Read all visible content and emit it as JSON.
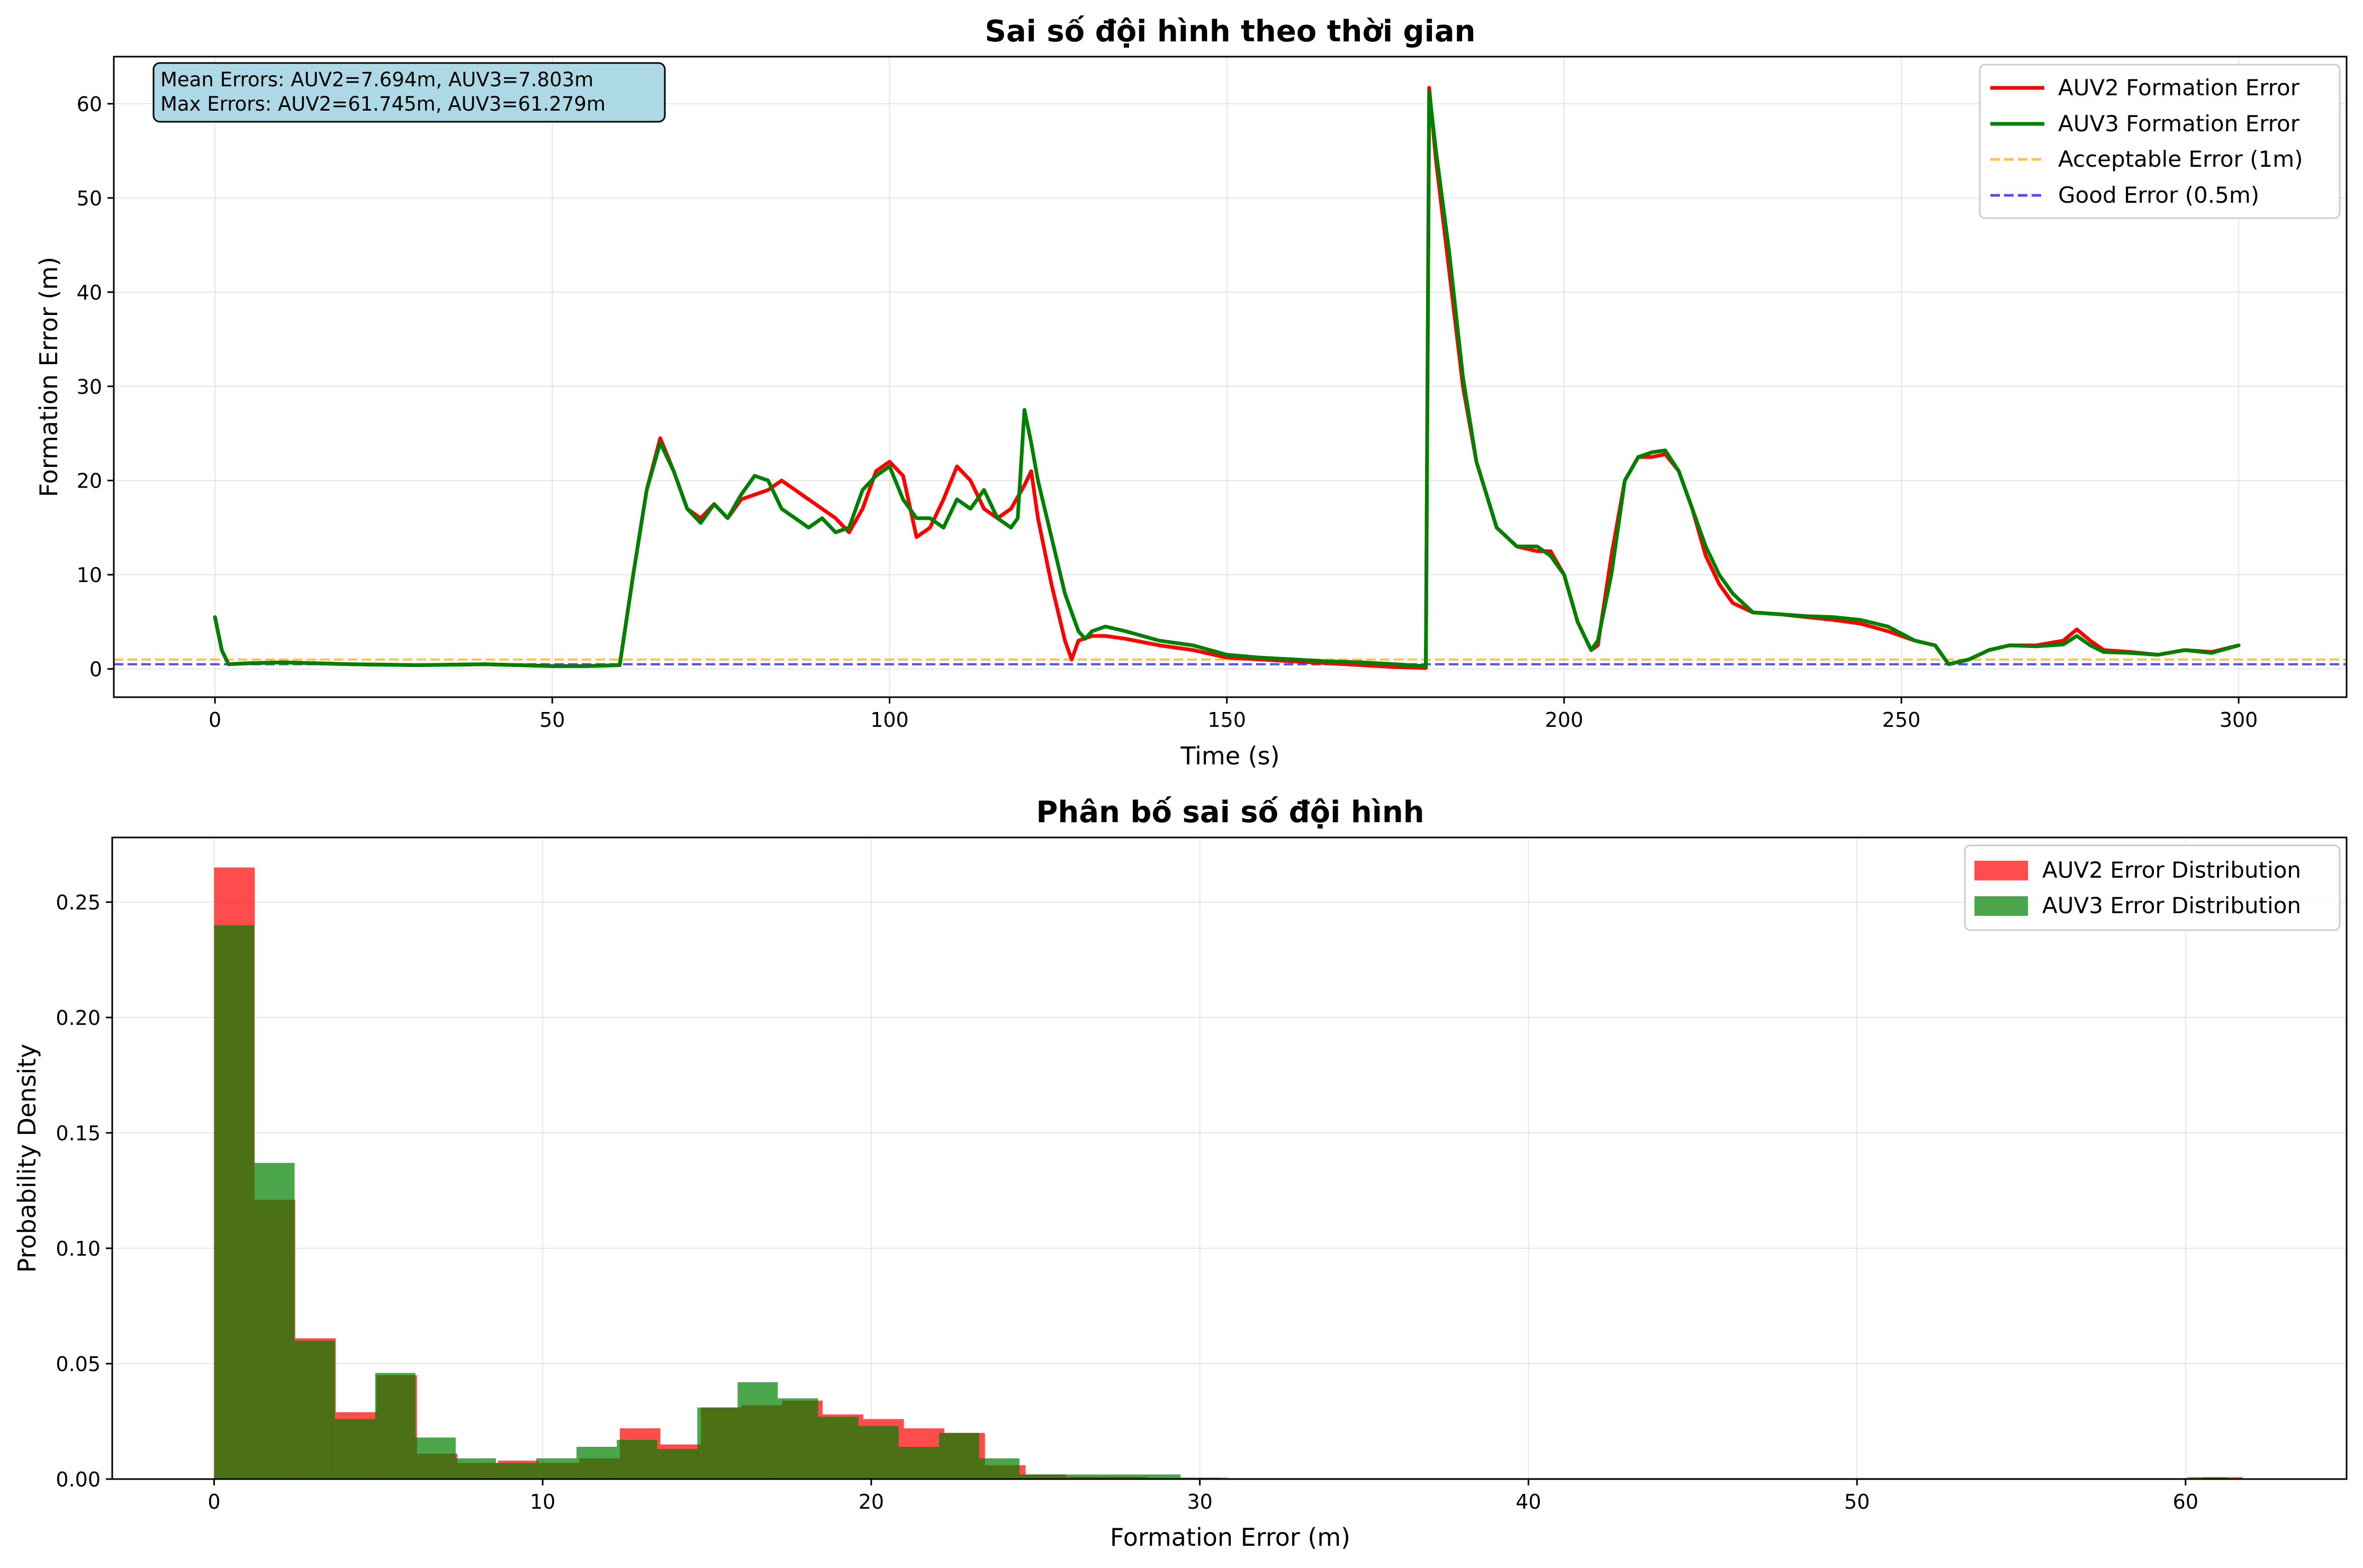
{
  "chart_data": [
    {
      "type": "line",
      "title": "Sai số đội hình theo thời gian",
      "xlabel": "Time (s)",
      "ylabel": "Formation Error (m)",
      "xlim": [
        -15,
        316
      ],
      "ylim": [
        -3,
        65
      ],
      "xticks": [
        0,
        50,
        100,
        150,
        200,
        250,
        300
      ],
      "yticks": [
        0,
        10,
        20,
        30,
        40,
        50,
        60
      ],
      "grid": true,
      "legend_position": "top-right",
      "annotation": {
        "line1": "Mean Errors: AUV2=7.694m, AUV3=7.803m",
        "line2": "Max Errors: AUV2=61.745m, AUV3=61.279m"
      },
      "series": [
        {
          "name": "AUV2 Formation Error",
          "color": "#ff0000",
          "style": "solid",
          "x": [
            0,
            1,
            2,
            5,
            10,
            20,
            30,
            40,
            50,
            55,
            60,
            62,
            64,
            66,
            68,
            70,
            72,
            74,
            76,
            78,
            80,
            82,
            84,
            86,
            88,
            90,
            92,
            94,
            96,
            98,
            100,
            102,
            104,
            106,
            108,
            110,
            112,
            114,
            116,
            118,
            120,
            121,
            122,
            124,
            126,
            127,
            128,
            130,
            132,
            135,
            140,
            145,
            150,
            155,
            160,
            165,
            170,
            175,
            179.5,
            180,
            181,
            183,
            185,
            187,
            190,
            193,
            196,
            198,
            200,
            202,
            204,
            205,
            207,
            209,
            211,
            213,
            215,
            217,
            219,
            221,
            223,
            225,
            228,
            232,
            236,
            240,
            244,
            248,
            252,
            255,
            257,
            260,
            263,
            266,
            270,
            274,
            276,
            278,
            280,
            284,
            288,
            292,
            296,
            300
          ],
          "y": [
            5.5,
            2,
            0.5,
            0.6,
            0.7,
            0.5,
            0.4,
            0.5,
            0.3,
            0.3,
            0.4,
            10,
            19,
            24.5,
            21,
            17,
            16,
            17.5,
            16,
            18,
            18.5,
            19,
            20,
            19,
            18,
            17,
            16,
            14.5,
            17,
            21,
            22,
            20.5,
            14,
            15,
            18,
            21.5,
            20,
            17,
            16,
            17,
            19.5,
            21,
            16,
            9,
            3,
            1,
            3,
            3.5,
            3.5,
            3.2,
            2.5,
            2,
            1.2,
            1,
            0.8,
            0.6,
            0.4,
            0.2,
            0.1,
            61.7,
            54,
            42,
            30,
            22,
            15,
            13,
            12.5,
            12.5,
            10,
            5,
            2,
            2.5,
            12,
            20,
            22.5,
            22.5,
            22.8,
            21,
            17,
            12,
            9,
            7,
            6,
            5.8,
            5.5,
            5.2,
            4.8,
            4,
            3,
            2.5,
            0.5,
            1,
            2,
            2.5,
            2.5,
            3,
            4.2,
            3,
            2,
            1.8,
            1.5,
            2,
            1.8,
            2.5
          ]
        },
        {
          "name": "AUV3 Formation Error",
          "color": "#008000",
          "style": "solid",
          "x": [
            0,
            1,
            2,
            5,
            10,
            20,
            30,
            40,
            50,
            55,
            60,
            62,
            64,
            66,
            68,
            70,
            72,
            74,
            76,
            78,
            80,
            82,
            84,
            86,
            88,
            90,
            92,
            94,
            96,
            98,
            100,
            102,
            104,
            106,
            108,
            110,
            112,
            114,
            116,
            118,
            119,
            120,
            121,
            122,
            124,
            126,
            128,
            129,
            130,
            132,
            135,
            140,
            145,
            150,
            155,
            160,
            165,
            170,
            175,
            179.5,
            180,
            181,
            183,
            185,
            187,
            190,
            193,
            196,
            198,
            200,
            202,
            204,
            205,
            207,
            209,
            211,
            213,
            215,
            217,
            219,
            221,
            223,
            225,
            228,
            232,
            236,
            240,
            244,
            248,
            252,
            255,
            257,
            260,
            263,
            266,
            270,
            274,
            276,
            278,
            280,
            284,
            288,
            292,
            296,
            300
          ],
          "y": [
            5.5,
            2,
            0.5,
            0.6,
            0.7,
            0.5,
            0.4,
            0.5,
            0.3,
            0.3,
            0.4,
            10,
            19,
            24,
            21,
            17,
            15.5,
            17.5,
            16,
            18.5,
            20.5,
            20,
            17,
            16,
            15,
            16,
            14.5,
            15,
            19,
            20.5,
            21.5,
            18,
            16,
            16,
            15,
            18,
            17,
            19,
            16,
            15,
            16,
            27.5,
            24,
            20,
            14,
            8,
            4,
            3.2,
            4,
            4.5,
            4,
            3,
            2.5,
            1.5,
            1.2,
            1,
            0.8,
            0.7,
            0.5,
            0.3,
            61.3,
            55,
            44,
            31,
            22,
            15,
            13,
            13,
            12,
            10,
            5,
            2,
            3,
            10,
            20,
            22.5,
            23,
            23.2,
            21,
            17,
            13,
            10,
            8,
            6,
            5.8,
            5.6,
            5.5,
            5.2,
            4.5,
            3,
            2.5,
            0.5,
            1,
            2,
            2.5,
            2.4,
            2.6,
            3.5,
            2.5,
            1.8,
            1.7,
            1.5,
            2,
            1.7,
            2.5
          ]
        },
        {
          "name": "Acceptable Error (1m)",
          "color": "#ffa500",
          "style": "dashed",
          "constant": 1
        },
        {
          "name": "Good Error (0.5m)",
          "color": "#0000ff",
          "style": "dashed",
          "constant": 0.5
        }
      ]
    },
    {
      "type": "bar",
      "subtype": "histogram",
      "title": "Phân bố sai số đội hình",
      "xlabel": "Formation Error (m)",
      "ylabel": "Probability Density",
      "xlim": [
        -3.1,
        64.9
      ],
      "ylim": [
        0,
        0.278
      ],
      "xticks": [
        0,
        10,
        20,
        30,
        40,
        50,
        60
      ],
      "yticks": [
        0.0,
        0.05,
        0.1,
        0.15,
        0.2,
        0.25
      ],
      "grid": true,
      "legend_position": "top-right",
      "series": [
        {
          "name": "AUV2 Error Distribution",
          "color": "#ff0000",
          "opacity": 0.7,
          "bin_edges": [
            0,
            1.235,
            2.47,
            3.704,
            4.939,
            6.174,
            7.409,
            8.643,
            9.878,
            11.113,
            12.348,
            13.582,
            14.817,
            16.052,
            17.287,
            18.521,
            19.756,
            20.991,
            22.226,
            23.46,
            24.695,
            25.93,
            27.165,
            28.399,
            29.634,
            30.869,
            32.104,
            33.338,
            34.573,
            35.808,
            37.043,
            38.277,
            39.512,
            40.747,
            41.982,
            43.216,
            44.451,
            45.686,
            46.921,
            48.155,
            49.39,
            50.625,
            51.86,
            53.094,
            54.329,
            55.564,
            56.799,
            58.033,
            59.268,
            60.503,
            61.738
          ],
          "values": [
            0.265,
            0.121,
            0.061,
            0.029,
            0.045,
            0.011,
            0.007,
            0.008,
            0.007,
            0.009,
            0.022,
            0.015,
            0.031,
            0.032,
            0.034,
            0.028,
            0.026,
            0.022,
            0.02,
            0.006,
            0.002,
            0.001,
            0.001,
            0.0006,
            0.0006,
            0.0004,
            0.0004,
            0.0004,
            0.0004,
            0.0004,
            0.0004,
            0.0004,
            0.0004,
            0.0004,
            0.0004,
            0.0004,
            0.0004,
            0.0004,
            0.0004,
            0.0004,
            0.0004,
            0.0004,
            0.0004,
            0.0004,
            0.0004,
            0.0004,
            0.0004,
            0.0004,
            0.0004,
            0.0008
          ]
        },
        {
          "name": "AUV3 Error Distribution",
          "color": "#008000",
          "opacity": 0.7,
          "bin_edges": [
            0,
            1.226,
            2.451,
            3.677,
            4.902,
            6.128,
            7.354,
            8.579,
            9.805,
            11.03,
            12.256,
            13.482,
            14.707,
            15.933,
            17.158,
            18.384,
            19.61,
            20.835,
            22.061,
            23.286,
            24.512,
            25.738,
            26.963,
            28.189,
            29.414,
            30.64,
            31.866,
            33.091,
            34.317,
            35.542,
            36.768,
            37.994,
            39.219,
            40.445,
            41.67,
            42.896,
            44.122,
            45.347,
            46.573,
            47.798,
            49.024,
            50.25,
            51.475,
            52.701,
            53.926,
            55.152,
            56.378,
            57.603,
            58.829,
            60.054,
            61.28
          ],
          "values": [
            0.24,
            0.137,
            0.06,
            0.026,
            0.046,
            0.018,
            0.009,
            0.007,
            0.009,
            0.014,
            0.017,
            0.013,
            0.031,
            0.042,
            0.035,
            0.027,
            0.023,
            0.014,
            0.02,
            0.009,
            0.002,
            0.002,
            0.002,
            0.002,
            0.0006,
            0.0004,
            0.0004,
            0.0004,
            0.0004,
            0.0004,
            0.0004,
            0.0004,
            0.0004,
            0.0004,
            0.0004,
            0.0004,
            0.0004,
            0.0004,
            0.0004,
            0.0004,
            0.0004,
            0.0004,
            0.0004,
            0.0004,
            0.0004,
            0.0004,
            0.0004,
            0.0004,
            0.0004,
            0.0008
          ]
        }
      ]
    }
  ]
}
